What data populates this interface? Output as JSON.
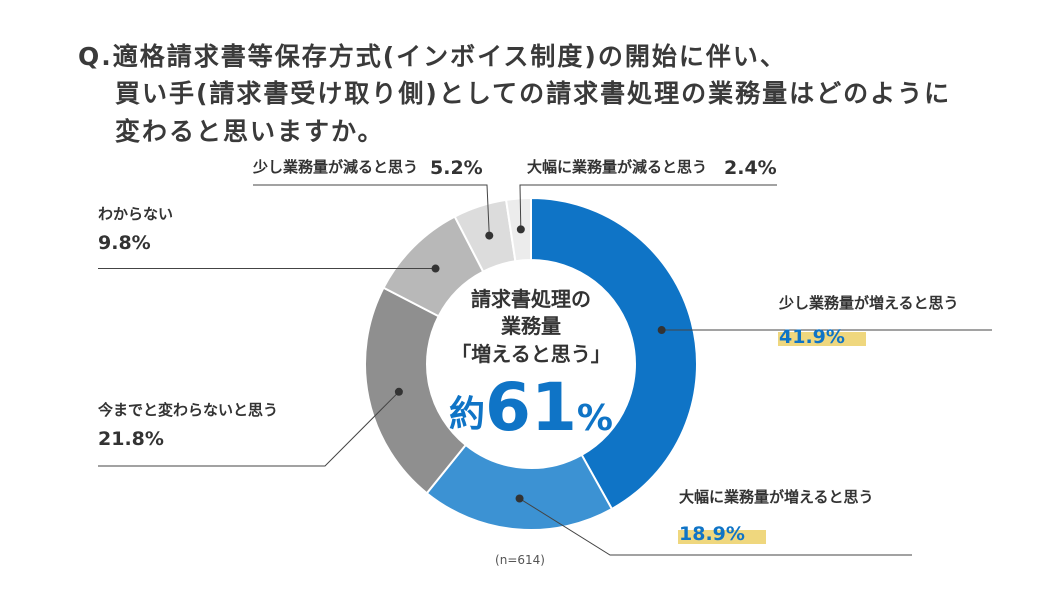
{
  "question": {
    "line1": "Q.適格請求書等保存方式(インボイス制度)の開始に伴い、",
    "line2": "買い手(請求書受け取り側)としての請求書処理の業務量はどのように",
    "line3": "変わると思いますか。"
  },
  "center_text": {
    "line1": "請求書処理の",
    "line2": "業務量",
    "line3": "「増えると思う」",
    "approx_prefix": "約",
    "big_value": "61",
    "percent_sign": "%"
  },
  "sample_note": "(n=614)",
  "colors": {
    "slice_large_increase": "#0f74c6",
    "slice_small_increase": "#3c92d3",
    "slice_unchanged": "#8f8f8f",
    "slice_unknown": "#b8b8b8",
    "slice_small_decrease": "#dcdcdc",
    "slice_large_decrease": "#ececec",
    "highlight": "#efd77e"
  },
  "chart_data": {
    "type": "pie",
    "donut": true,
    "start": "12 o'clock, clockwise",
    "slices": [
      {
        "label": "少し業務量が増えると思う",
        "value": 41.9,
        "display": "41.9%",
        "color": "#0f74c6",
        "highlighted": true
      },
      {
        "label": "大幅に業務量が増えると思う",
        "value": 18.9,
        "display": "18.9%",
        "color": "#3c92d3",
        "highlighted": true
      },
      {
        "label": "今までと変わらないと思う",
        "value": 21.8,
        "display": "21.8%",
        "color": "#8f8f8f",
        "highlighted": false
      },
      {
        "label": "わからない",
        "value": 9.8,
        "display": "9.8%",
        "color": "#b8b8b8",
        "highlighted": false
      },
      {
        "label": "少し業務量が減ると思う",
        "value": 5.2,
        "display": "5.2%",
        "color": "#dcdcdc",
        "highlighted": false
      },
      {
        "label": "大幅に業務量が減ると思う",
        "value": 2.4,
        "display": "2.4%",
        "color": "#ececec",
        "highlighted": false
      }
    ]
  }
}
